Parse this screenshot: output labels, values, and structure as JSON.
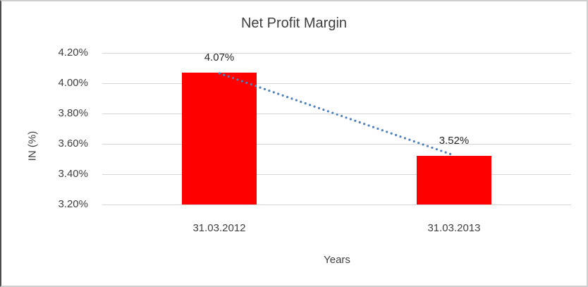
{
  "chart_data": {
    "type": "bar",
    "title": "Net Profit Margin",
    "xlabel": "Years",
    "ylabel": "IN (%)",
    "categories": [
      "31.03.2012",
      "31.03.2013"
    ],
    "values": [
      4.07,
      3.52
    ],
    "data_labels": [
      "4.07%",
      "3.52%"
    ],
    "y_tick_labels": [
      "4.20%",
      "4.00%",
      "3.80%",
      "3.60%",
      "3.40%",
      "3.20%"
    ],
    "y_tick_values": [
      4.2,
      4.0,
      3.8,
      3.6,
      3.4,
      3.2
    ],
    "ylim": [
      3.2,
      4.2
    ],
    "grid": true,
    "legend": false,
    "colors": {
      "bar": "#ff0000",
      "trendline": "#4f81bd",
      "gridline": "#d6d6d6",
      "text": "#3f3f3f"
    },
    "trendline": {
      "style": "dotted",
      "connects": "bar tops"
    }
  }
}
